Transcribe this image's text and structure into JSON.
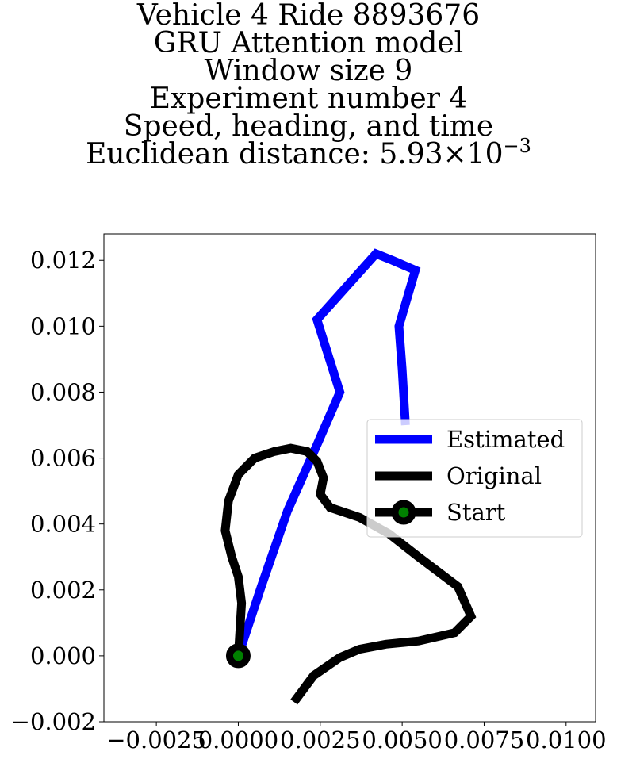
{
  "chart_data": {
    "type": "line",
    "title_lines": [
      "Vehicle 4 Ride 8893676",
      "GRU Attention model",
      "Window size 9",
      "Experiment number 4",
      "Speed, heading, and time"
    ],
    "title_metric": {
      "label": "Euclidean distance: ",
      "mantissa": "5.93",
      "times": "×",
      "base": "10",
      "exponent": "−3"
    },
    "xlabel": "",
    "ylabel": "",
    "xlim": [
      -0.0041,
      0.0109
    ],
    "ylim": [
      -0.002,
      0.0128
    ],
    "xticks": [
      {
        "value": -0.0025,
        "label": "−0.0025"
      },
      {
        "value": 0.0,
        "label": "0.0000"
      },
      {
        "value": 0.0025,
        "label": "0.0025"
      },
      {
        "value": 0.005,
        "label": "0.0050"
      },
      {
        "value": 0.0075,
        "label": "0.0075"
      },
      {
        "value": 0.01,
        "label": "0.0100"
      }
    ],
    "yticks": [
      {
        "value": -0.002,
        "label": "−0.002"
      },
      {
        "value": 0.0,
        "label": "0.000"
      },
      {
        "value": 0.002,
        "label": "0.002"
      },
      {
        "value": 0.004,
        "label": "0.004"
      },
      {
        "value": 0.006,
        "label": "0.006"
      },
      {
        "value": 0.008,
        "label": "0.008"
      },
      {
        "value": 0.01,
        "label": "0.010"
      },
      {
        "value": 0.012,
        "label": "0.012"
      }
    ],
    "grid": false,
    "legend_position": "center-right",
    "series": [
      {
        "name": "Estimated",
        "color": "#0000ff",
        "points": [
          [
            0.0,
            0.0
          ],
          [
            0.0007,
            0.0021
          ],
          [
            0.0015,
            0.0044
          ],
          [
            0.0024,
            0.0064
          ],
          [
            0.0031,
            0.008
          ],
          [
            0.0024,
            0.0102
          ],
          [
            0.0042,
            0.0122
          ],
          [
            0.0047,
            0.012
          ],
          [
            0.0054,
            0.0117
          ],
          [
            0.0049,
            0.01
          ],
          [
            0.005,
            0.0087
          ],
          [
            0.0051,
            0.007
          ]
        ]
      },
      {
        "name": "Original",
        "color": "#000000",
        "points": [
          [
            0.0017,
            -0.0014
          ],
          [
            0.0023,
            -0.0006
          ],
          [
            0.0031,
            -5e-05
          ],
          [
            0.0037,
            0.0002
          ],
          [
            0.0045,
            0.00035
          ],
          [
            0.0055,
            0.00045
          ],
          [
            0.0066,
            0.0007
          ],
          [
            0.0071,
            0.0012
          ],
          [
            0.0067,
            0.0021
          ],
          [
            0.0055,
            0.003
          ],
          [
            0.0046,
            0.0037
          ],
          [
            0.0037,
            0.0042
          ],
          [
            0.0028,
            0.0045
          ],
          [
            0.0025,
            0.0049
          ],
          [
            0.0026,
            0.0054
          ],
          [
            0.0024,
            0.0059
          ],
          [
            0.0021,
            0.0062
          ],
          [
            0.0016,
            0.0063
          ],
          [
            0.0011,
            0.0062
          ],
          [
            0.0005,
            0.006
          ],
          [
            0.0,
            0.0055
          ],
          [
            -0.0003,
            0.0047
          ],
          [
            -0.0004,
            0.0038
          ],
          [
            -0.0002,
            0.003
          ],
          [
            0.0,
            0.0024
          ],
          [
            0.0001,
            0.0016
          ],
          [
            0.0,
            0.0
          ]
        ]
      },
      {
        "name": "Start",
        "color": "#000000",
        "marker_face": "#008000",
        "points": [
          [
            0.0,
            0.0
          ]
        ]
      }
    ]
  }
}
